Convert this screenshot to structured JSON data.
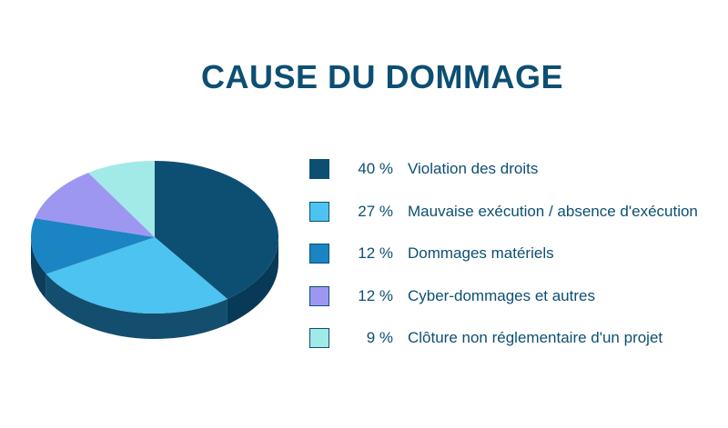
{
  "chart_data": {
    "type": "pie",
    "title": "CAUSE DU DOMMAGE",
    "slices": [
      {
        "value": 40,
        "pct_label": "40 %",
        "label": "Violation des droits",
        "color": "#0d4f73",
        "side_color": "#083a57"
      },
      {
        "value": 27,
        "pct_label": "27 %",
        "label": "Mauvaise exécution / absence d'exécution",
        "color": "#4cc3f0",
        "side_color": "#134e6e"
      },
      {
        "value": 12,
        "pct_label": "12 %",
        "label": "Dommages matériels",
        "color": "#1b84c2",
        "side_color": "#0c3e5c"
      },
      {
        "value": 12,
        "pct_label": "12 %",
        "label": "Cyber-dommages et autres",
        "color": "#9d97f2",
        "side_color": "#4c4a8a"
      },
      {
        "value": 9,
        "pct_label": "9 %",
        "label": "Clôture non réglementaire d'un projet",
        "color": "#a2eae8",
        "side_color": "#5c9c9a"
      }
    ]
  }
}
